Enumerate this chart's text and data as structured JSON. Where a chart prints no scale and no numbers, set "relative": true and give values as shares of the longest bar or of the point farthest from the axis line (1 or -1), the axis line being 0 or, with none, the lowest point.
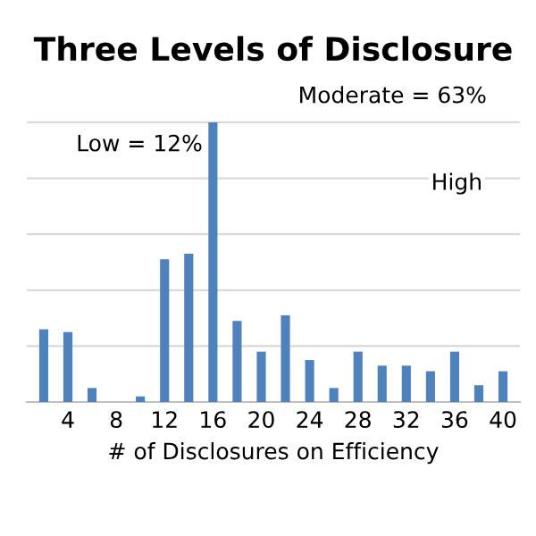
{
  "chart_data": {
    "type": "bar",
    "title": "Three Levels of Disclosure",
    "xlabel": "# of Disclosures on Efficiency",
    "x": [
      2,
      4,
      6,
      8,
      10,
      12,
      14,
      16,
      18,
      20,
      22,
      24,
      26,
      28,
      30,
      32,
      34,
      36,
      38,
      40
    ],
    "values": [
      0.26,
      0.25,
      0.05,
      0,
      0.02,
      0.51,
      0.53,
      1,
      0.29,
      0.18,
      0.31,
      0.15,
      0.05,
      0.18,
      0.13,
      0.13,
      0.11,
      0.18,
      0.06,
      0.11
    ],
    "color": "#4f81bd",
    "relative": true,
    "xlim": [
      0.6,
      41.4
    ],
    "xticks": [
      4,
      8,
      12,
      16,
      20,
      24,
      28,
      32,
      36,
      40
    ],
    "grid": "y",
    "annotations": [
      "Low = 12%",
      "Moderate = 63%",
      "High"
    ]
  }
}
